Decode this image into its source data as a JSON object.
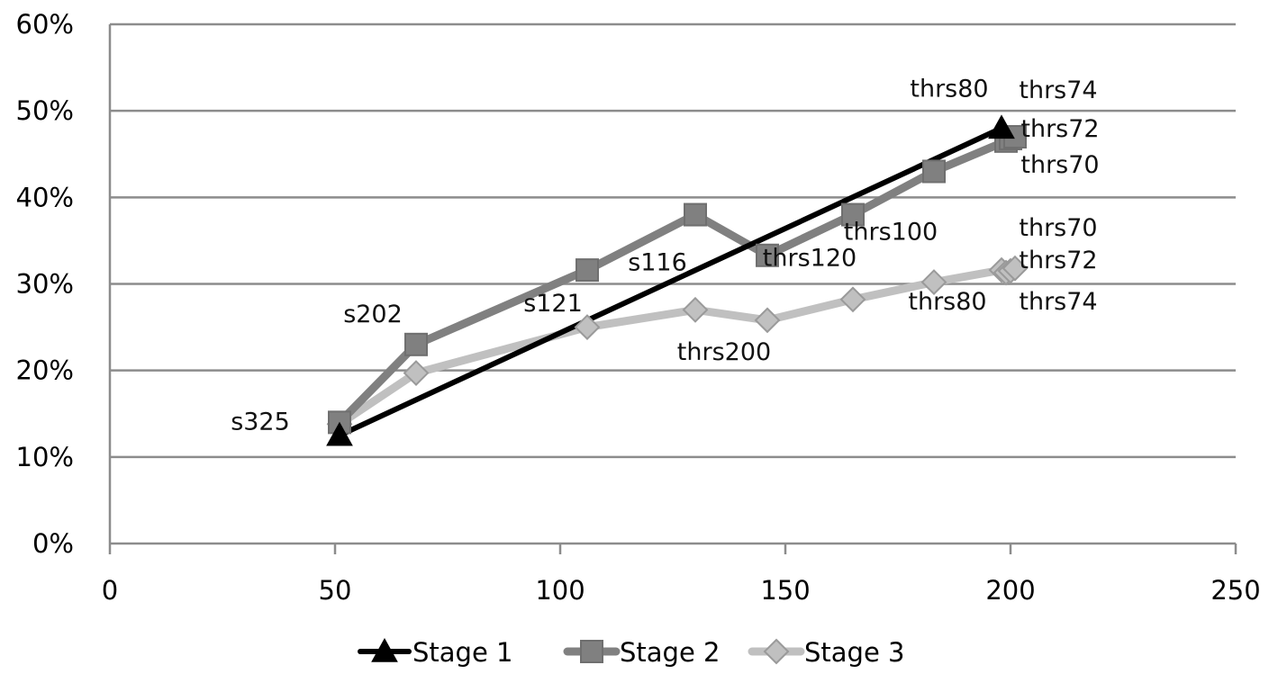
{
  "chart_data": {
    "type": "line",
    "title": "",
    "xlabel": "",
    "ylabel": "",
    "xlim": [
      0,
      250
    ],
    "ylim": [
      0,
      0.6
    ],
    "x_ticks": [
      0,
      50,
      100,
      150,
      200,
      250
    ],
    "x_tick_labels": [
      "0",
      "50",
      "100",
      "150",
      "200",
      "250"
    ],
    "y_ticks": [
      0,
      0.1,
      0.2,
      0.3,
      0.4,
      0.5,
      0.6
    ],
    "y_tick_labels": [
      "0%",
      "10%",
      "20%",
      "30%",
      "40%",
      "50%",
      "60%"
    ],
    "grid": "horizontal",
    "legend_position": "bottom",
    "series": [
      {
        "name": "Stage 1",
        "color": "#000000",
        "marker": "triangle",
        "points": [
          {
            "x": 51,
            "y": 0.125
          },
          {
            "x": 198,
            "y": 0.48
          }
        ]
      },
      {
        "name": "Stage 2",
        "color": "#808080",
        "marker": "square",
        "points": [
          {
            "x": 51,
            "y": 0.14
          },
          {
            "x": 68,
            "y": 0.23
          },
          {
            "x": 106,
            "y": 0.316
          },
          {
            "x": 130,
            "y": 0.38
          },
          {
            "x": 146,
            "y": 0.333
          },
          {
            "x": 165,
            "y": 0.38
          },
          {
            "x": 183,
            "y": 0.43
          },
          {
            "x": 199,
            "y": 0.465
          },
          {
            "x": 200,
            "y": 0.468
          },
          {
            "x": 201,
            "y": 0.47
          }
        ]
      },
      {
        "name": "Stage 3",
        "color": "#c0c0c0",
        "marker": "diamond",
        "points": [
          {
            "x": 51,
            "y": 0.138
          },
          {
            "x": 68,
            "y": 0.197
          },
          {
            "x": 106,
            "y": 0.25
          },
          {
            "x": 130,
            "y": 0.27
          },
          {
            "x": 146,
            "y": 0.258
          },
          {
            "x": 165,
            "y": 0.282
          },
          {
            "x": 183,
            "y": 0.302
          },
          {
            "x": 198,
            "y": 0.316
          },
          {
            "x": 199,
            "y": 0.313
          },
          {
            "x": 200,
            "y": 0.315
          },
          {
            "x": 201,
            "y": 0.318
          }
        ]
      }
    ],
    "annotations": [
      {
        "text": "s325",
        "x": 51,
        "y": 0.14,
        "dx": -88,
        "dy": 8
      },
      {
        "text": "s202",
        "x": 68,
        "y": 0.23,
        "dx": -48,
        "dy": -25
      },
      {
        "text": "s121",
        "x": 106,
        "y": 0.316,
        "dx": -38,
        "dy": 46
      },
      {
        "text": "s116",
        "x": 130,
        "y": 0.38,
        "dx": -42,
        "dy": 62
      },
      {
        "text": "thrs200",
        "x": 146,
        "y": 0.258,
        "dx": -48,
        "dy": 44
      },
      {
        "text": "thrs120",
        "x": 165,
        "y": 0.38,
        "dx": -48,
        "dy": 57
      },
      {
        "text": "thrs100",
        "x": 183,
        "y": 0.43,
        "dx": -48,
        "dy": 76
      },
      {
        "text": "thrs80",
        "x": 198,
        "y": 0.48,
        "dx": -58,
        "dy": -35
      },
      {
        "text": "thrs74",
        "x": 201,
        "y": 0.47,
        "dx": 48,
        "dy": -43
      },
      {
        "text": "thrs72",
        "x": 201,
        "y": 0.47,
        "dx": 50,
        "dy": 0
      },
      {
        "text": "thrs70",
        "x": 201,
        "y": 0.465,
        "dx": 50,
        "dy": 35
      },
      {
        "text": "thrs70",
        "x": 201,
        "y": 0.318,
        "dx": 48,
        "dy": -36
      },
      {
        "text": "thrs72",
        "x": 201,
        "y": 0.318,
        "dx": 48,
        "dy": 0
      },
      {
        "text": "thrs80",
        "x": 198,
        "y": 0.316,
        "dx": -60,
        "dy": 44
      },
      {
        "text": "thrs74",
        "x": 201,
        "y": 0.316,
        "dx": 48,
        "dy": 44
      }
    ]
  }
}
